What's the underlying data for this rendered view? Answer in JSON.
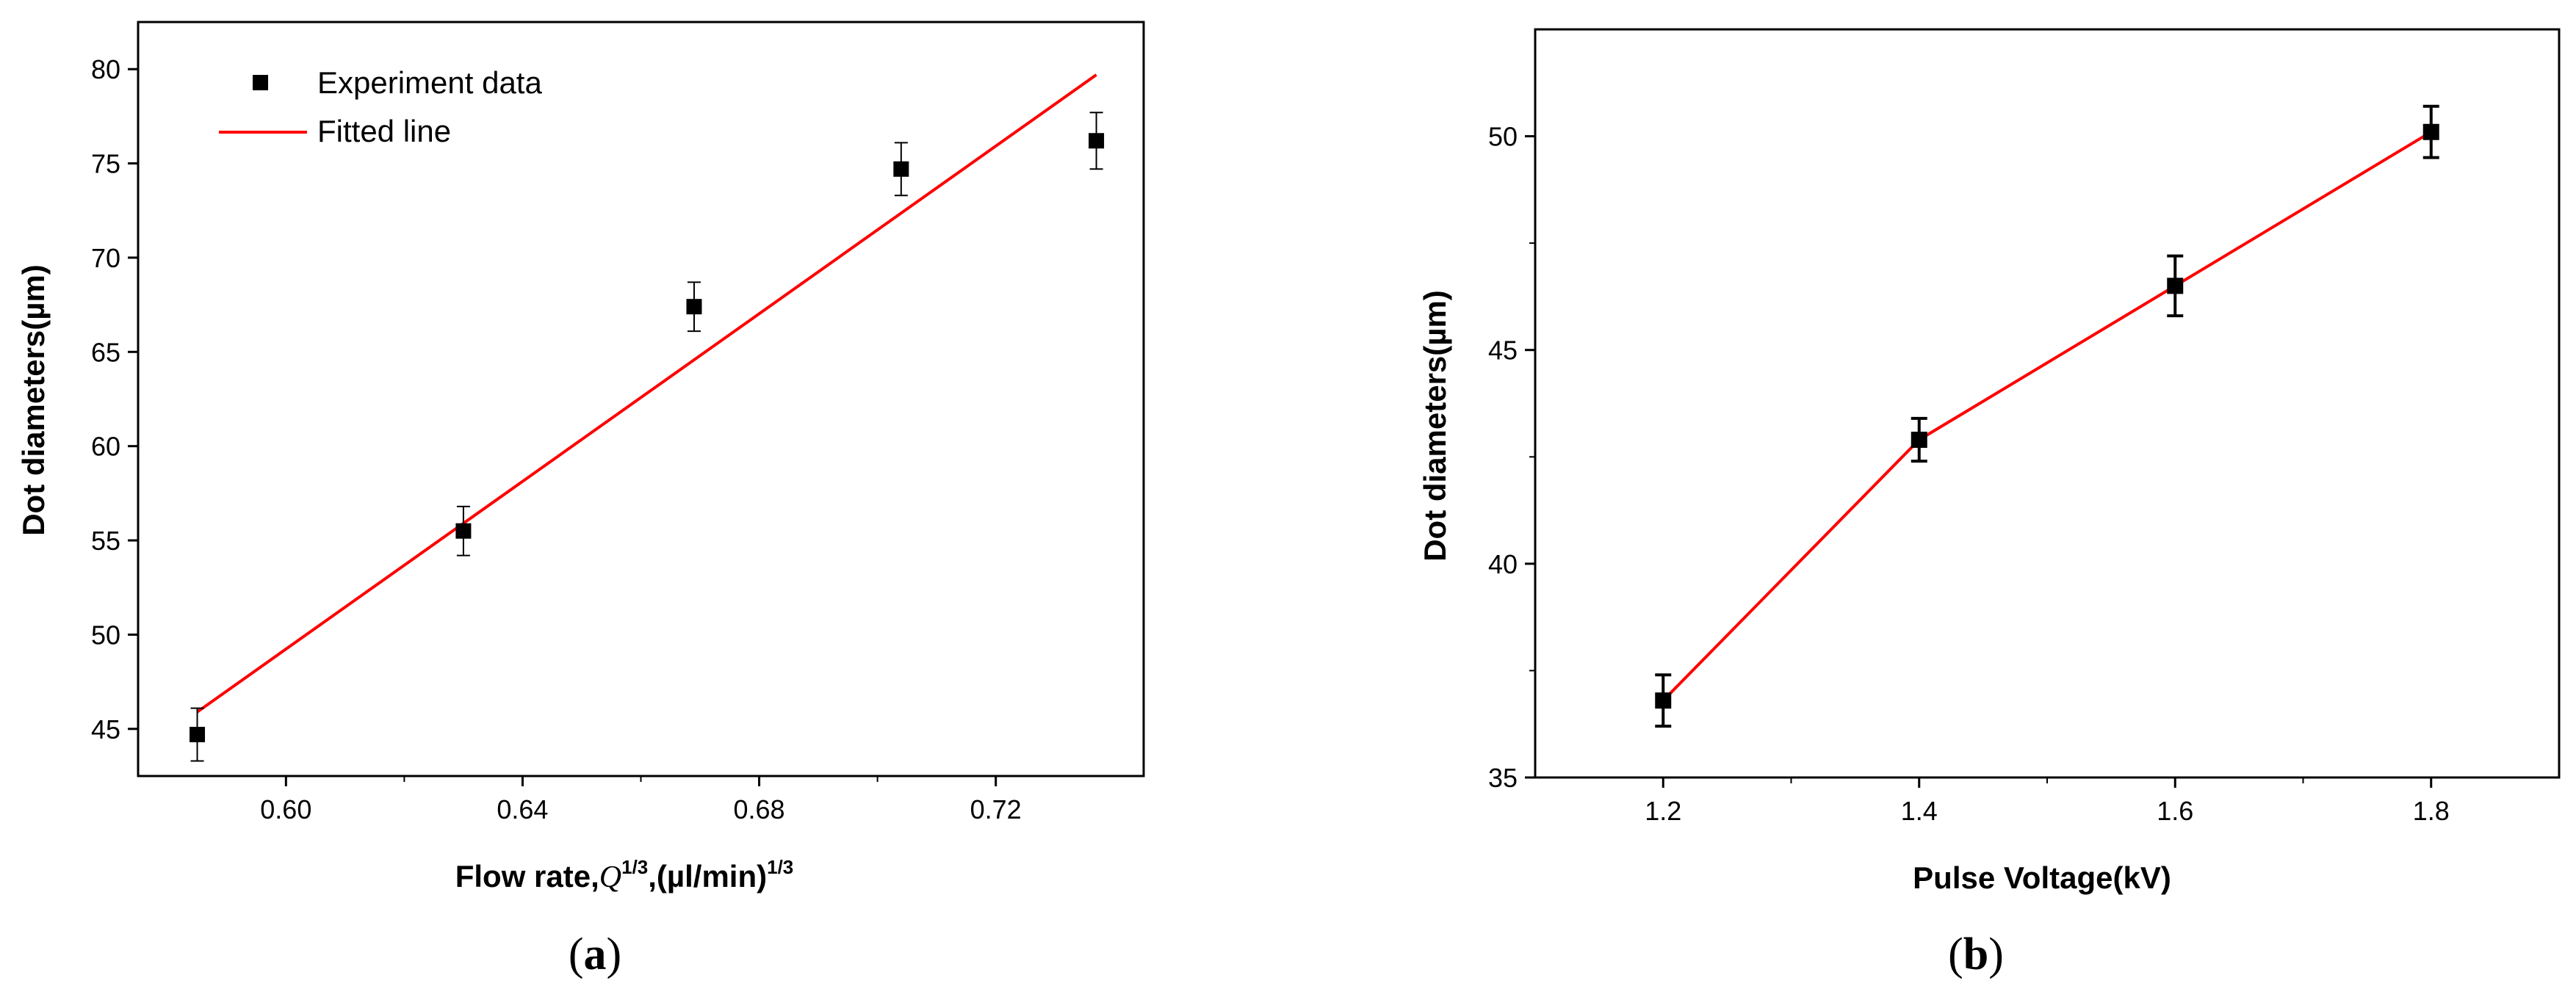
{
  "chart_data": [
    {
      "type": "scatter",
      "panel_label": "a",
      "xlabel_prefix": "Flow rate,",
      "xlabel_var": "Q",
      "xlabel_exp": "1/3",
      "xlabel_unit": ",(µl/min)",
      "xlabel_unit_exp": "1/3",
      "ylabel": "Dot diameters(µm)",
      "xlim": [
        0.575,
        0.745
      ],
      "ylim": [
        42.5,
        82.5
      ],
      "xticks": [
        0.6,
        0.64,
        0.68,
        0.72
      ],
      "xtick_labels": [
        "0.60",
        "0.64",
        "0.68",
        "0.72"
      ],
      "yticks": [
        45,
        50,
        55,
        60,
        65,
        70,
        75,
        80
      ],
      "ytick_labels": [
        "45",
        "50",
        "55",
        "60",
        "65",
        "70",
        "75",
        "80"
      ],
      "legend_position": "top-left",
      "series": [
        {
          "name": "Experiment data",
          "kind": "points",
          "color": "#000000",
          "x": [
            0.585,
            0.63,
            0.669,
            0.704,
            0.737
          ],
          "y": [
            44.7,
            55.5,
            67.4,
            74.7,
            76.2
          ],
          "err": [
            1.4,
            1.3,
            1.3,
            1.4,
            1.5
          ]
        },
        {
          "name": "Fitted line",
          "kind": "line",
          "color": "#ff0000",
          "x": [
            0.585,
            0.737
          ],
          "y": [
            45.9,
            79.7
          ]
        }
      ]
    },
    {
      "type": "line",
      "panel_label": "b",
      "xlabel": "Pulse Voltage(kV)",
      "ylabel": "Dot diameters(µm)",
      "xlim": [
        1.1,
        1.9
      ],
      "ylim": [
        35,
        52.5
      ],
      "xticks": [
        1.2,
        1.4,
        1.6,
        1.8
      ],
      "xtick_labels": [
        "1.2",
        "1.4",
        "1.6",
        "1.8"
      ],
      "yticks": [
        35,
        40,
        45,
        50
      ],
      "ytick_labels": [
        "35",
        "40",
        "45",
        "50"
      ],
      "series": [
        {
          "kind": "line-points",
          "line_color": "#ff0000",
          "marker_color": "#000000",
          "x": [
            1.2,
            1.4,
            1.6,
            1.8
          ],
          "y": [
            36.8,
            42.9,
            46.5,
            50.1
          ],
          "err": [
            0.6,
            0.5,
            0.7,
            0.6
          ]
        }
      ]
    }
  ]
}
